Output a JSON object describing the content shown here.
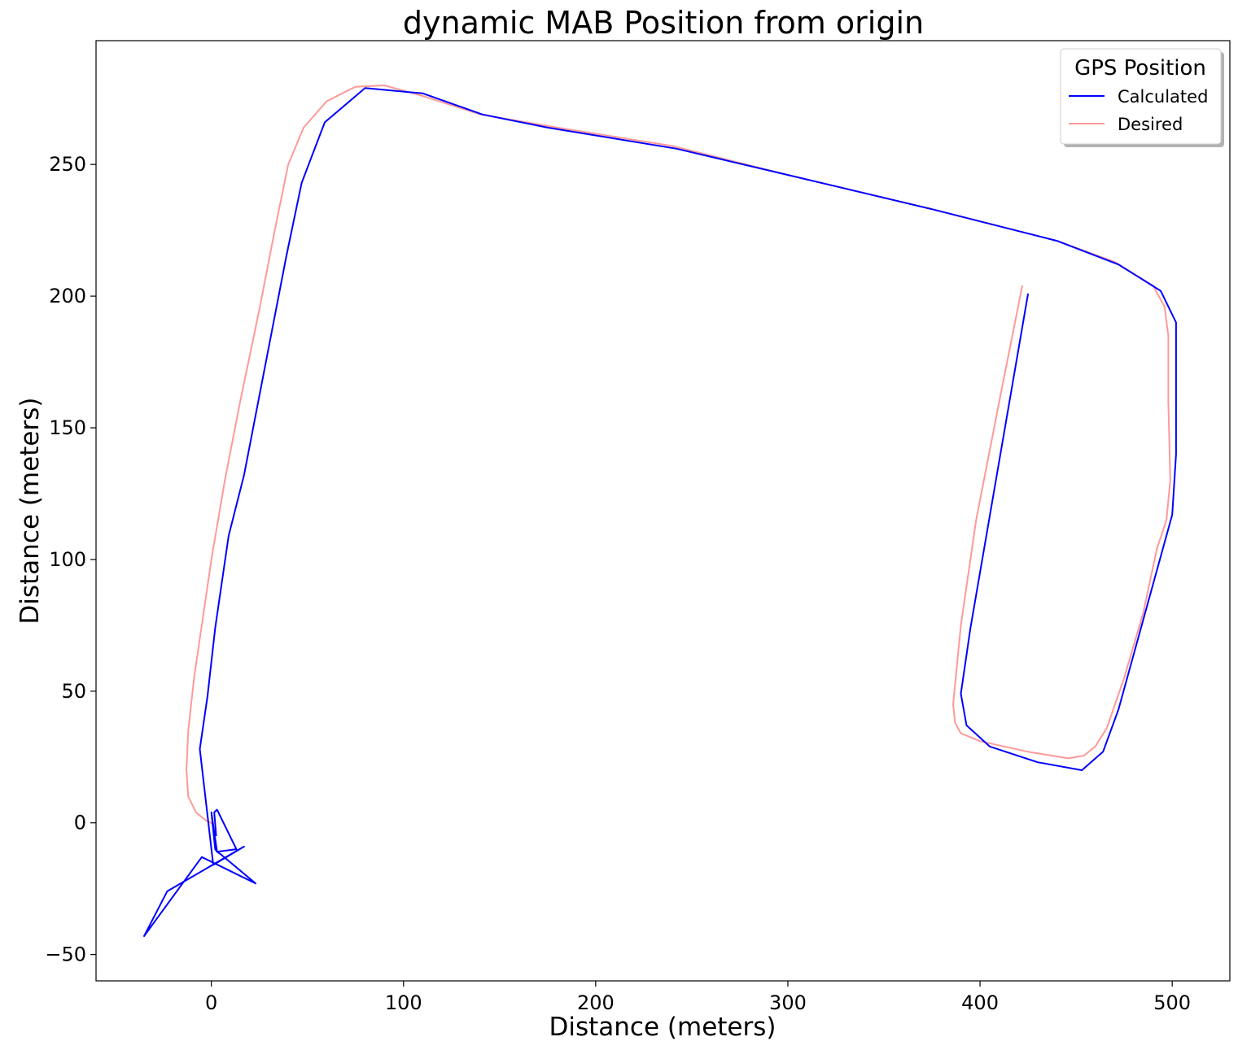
{
  "chart_data": {
    "type": "line",
    "title": "dynamic MAB Position from origin",
    "xlabel": "Distance (meters)",
    "ylabel": "Distance (meters)",
    "xlim": [
      -60,
      530
    ],
    "ylim": [
      -60,
      297
    ],
    "xticks": [
      0,
      100,
      200,
      300,
      400,
      500
    ],
    "yticks": [
      -50,
      0,
      50,
      100,
      150,
      200,
      250
    ],
    "xtick_labels": [
      "0",
      "100",
      "200",
      "300",
      "400",
      "500"
    ],
    "ytick_labels": [
      "−50",
      "0",
      "50",
      "100",
      "150",
      "200",
      "250"
    ],
    "grid": false,
    "legend": {
      "title": "GPS Position",
      "placement": "top-right"
    },
    "series": [
      {
        "name": "Calculated",
        "color": "#0000ff",
        "points": [
          [
            2.5,
            -5
          ],
          [
            1.5,
            4
          ],
          [
            3,
            5
          ],
          [
            13,
            -10
          ],
          [
            3,
            -11
          ],
          [
            2,
            -10
          ],
          [
            0,
            4
          ],
          [
            3,
            -11
          ],
          [
            5,
            -12
          ],
          [
            23,
            -23
          ],
          [
            -5,
            -13
          ],
          [
            -35,
            -43
          ],
          [
            -23,
            -26
          ],
          [
            17,
            -9
          ],
          [
            1,
            -16
          ],
          [
            -6,
            28
          ],
          [
            -2,
            48
          ],
          [
            2,
            74
          ],
          [
            9,
            109
          ],
          [
            17,
            132
          ],
          [
            39,
            215
          ],
          [
            47,
            243
          ],
          [
            59,
            266
          ],
          [
            80,
            279
          ],
          [
            110,
            277
          ],
          [
            141,
            269
          ],
          [
            175,
            264
          ],
          [
            242,
            256
          ],
          [
            300,
            246
          ],
          [
            375,
            233
          ],
          [
            440,
            221
          ],
          [
            472,
            212
          ],
          [
            494,
            202
          ],
          [
            502,
            190
          ],
          [
            502,
            140
          ],
          [
            500,
            117
          ],
          [
            472,
            43
          ],
          [
            464,
            27
          ],
          [
            453,
            20
          ],
          [
            430,
            23
          ],
          [
            405,
            29
          ],
          [
            393,
            37
          ],
          [
            390,
            49
          ],
          [
            395,
            74
          ],
          [
            425,
            201
          ]
        ]
      },
      {
        "name": "Desired",
        "color": "#ff9999",
        "points": [
          [
            1,
            -0.5
          ],
          [
            -3,
            1
          ],
          [
            -8,
            4
          ],
          [
            -12,
            10
          ],
          [
            -13,
            20
          ],
          [
            -12,
            35
          ],
          [
            -9,
            55
          ],
          [
            -5,
            75
          ],
          [
            0,
            100
          ],
          [
            7,
            130
          ],
          [
            15,
            160
          ],
          [
            25,
            195
          ],
          [
            33,
            225
          ],
          [
            40,
            250
          ],
          [
            48,
            264
          ],
          [
            60,
            274
          ],
          [
            75,
            279.5
          ],
          [
            90,
            280
          ],
          [
            110,
            276
          ],
          [
            140,
            269
          ],
          [
            180,
            264
          ],
          [
            240,
            257
          ],
          [
            300,
            246
          ],
          [
            375,
            233
          ],
          [
            440,
            221
          ],
          [
            470,
            213
          ],
          [
            490,
            204
          ],
          [
            496,
            196
          ],
          [
            498,
            185
          ],
          [
            498,
            160
          ],
          [
            499,
            130
          ],
          [
            497,
            115
          ],
          [
            492,
            104
          ],
          [
            485,
            80
          ],
          [
            475,
            55
          ],
          [
            466,
            36
          ],
          [
            460,
            29
          ],
          [
            454,
            25.5
          ],
          [
            446,
            24.5
          ],
          [
            425,
            27
          ],
          [
            400,
            31
          ],
          [
            390,
            34
          ],
          [
            387,
            38
          ],
          [
            386,
            45
          ],
          [
            390,
            75
          ],
          [
            398,
            115
          ],
          [
            410,
            160
          ],
          [
            422,
            204
          ]
        ]
      }
    ]
  }
}
